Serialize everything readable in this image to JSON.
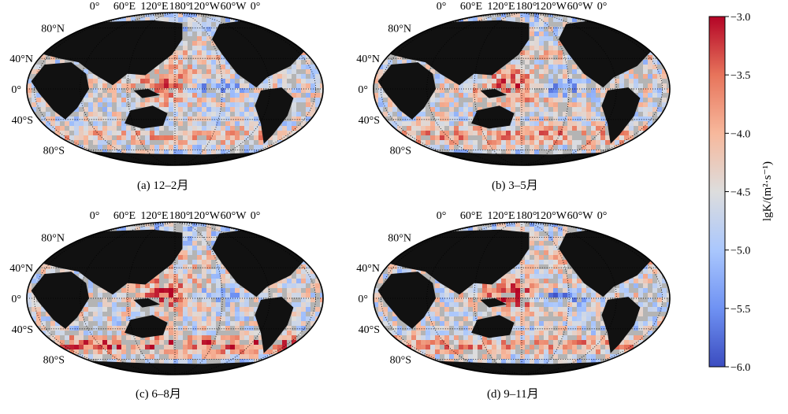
{
  "panels": [
    {
      "caption": "(a) 12–2月",
      "season": "DJF"
    },
    {
      "caption": "(b) 3–5月",
      "season": "MAM"
    },
    {
      "caption": "(c) 6–8月",
      "season": "JJA"
    },
    {
      "caption": "(d) 9–11月",
      "season": "SON"
    }
  ],
  "map_labels": {
    "lon_top": [
      "0°",
      "60°E",
      "120°E",
      "180°",
      "120°W",
      "60°W",
      "0°"
    ],
    "lat_left": [
      "80°N",
      "40°N",
      "0°",
      "40°S",
      "80°S"
    ]
  },
  "colorbar": {
    "label": "lgK/(m²·s⁻¹)",
    "ticks": [
      "−3.0",
      "−3.5",
      "−4.0",
      "−4.5",
      "−5.0",
      "−5.5",
      "−6.0"
    ],
    "range": [
      -6.0,
      -3.0
    ],
    "colors": [
      "#3b4cc0",
      "#6f92f3",
      "#aac7fd",
      "#dddddd",
      "#f7b89c",
      "#e7745b",
      "#b40426"
    ],
    "land_color": "#111111",
    "nodata_color": "#b4b4b4"
  }
}
